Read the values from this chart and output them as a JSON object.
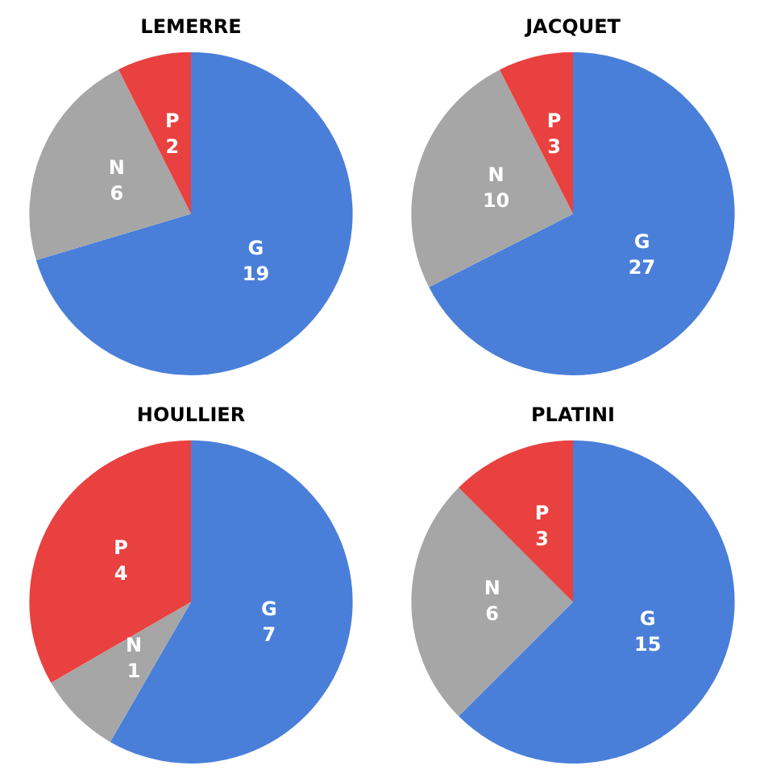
{
  "chart_data": [
    {
      "type": "pie",
      "title": "LEMERRE",
      "categories": [
        "G",
        "N",
        "P"
      ],
      "values": [
        19,
        6,
        2
      ],
      "colors": [
        "#4a7fd9",
        "#a6a6a6",
        "#e8413f"
      ],
      "data_labels": true
    },
    {
      "type": "pie",
      "title": "JACQUET",
      "categories": [
        "G",
        "N",
        "P"
      ],
      "values": [
        27,
        10,
        3
      ],
      "colors": [
        "#4a7fd9",
        "#a6a6a6",
        "#e8413f"
      ],
      "data_labels": true
    },
    {
      "type": "pie",
      "title": "HOULLIER",
      "categories": [
        "G",
        "N",
        "P"
      ],
      "values": [
        7,
        1,
        4
      ],
      "colors": [
        "#4a7fd9",
        "#a6a6a6",
        "#e8413f"
      ],
      "data_labels": true
    },
    {
      "type": "pie",
      "title": "PLATINI",
      "categories": [
        "G",
        "N",
        "P"
      ],
      "values": [
        15,
        6,
        3
      ],
      "colors": [
        "#4a7fd9",
        "#a6a6a6",
        "#e8413f"
      ],
      "data_labels": true
    }
  ]
}
